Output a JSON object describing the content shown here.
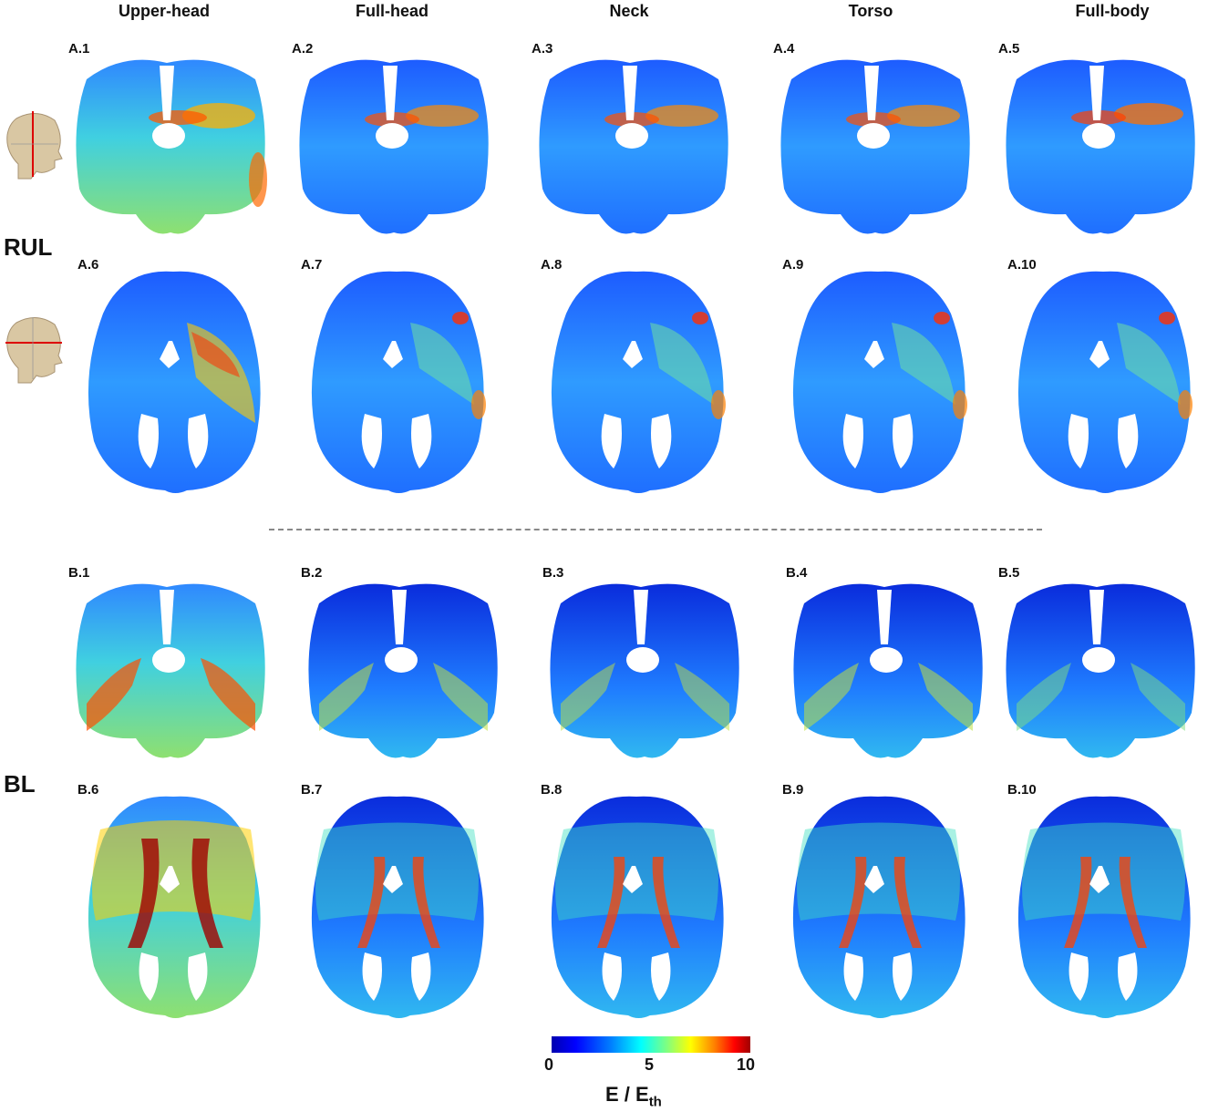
{
  "columns": [
    "Upper-head",
    "Full-head",
    "Neck",
    "Torso",
    "Full-body"
  ],
  "groups": [
    {
      "label": "RUL",
      "panels": [
        "A.1",
        "A.2",
        "A.3",
        "A.4",
        "A.5",
        "A.6",
        "A.7",
        "A.8",
        "A.9",
        "A.10"
      ]
    },
    {
      "label": "BL",
      "panels": [
        "B.1",
        "B.2",
        "B.3",
        "B.4",
        "B.5",
        "B.6",
        "B.7",
        "B.8",
        "B.9",
        "B.10"
      ]
    }
  ],
  "colorbar": {
    "ticks": [
      "0",
      "5",
      "10"
    ],
    "title_main": "E / E",
    "title_sub": "th",
    "colors": [
      "#0000b0",
      "#0000ff",
      "#00ffff",
      "#ffff00",
      "#ff0000",
      "#a00000"
    ]
  },
  "icons": [
    "head-coronal-slice-icon",
    "head-axial-slice-icon"
  ]
}
